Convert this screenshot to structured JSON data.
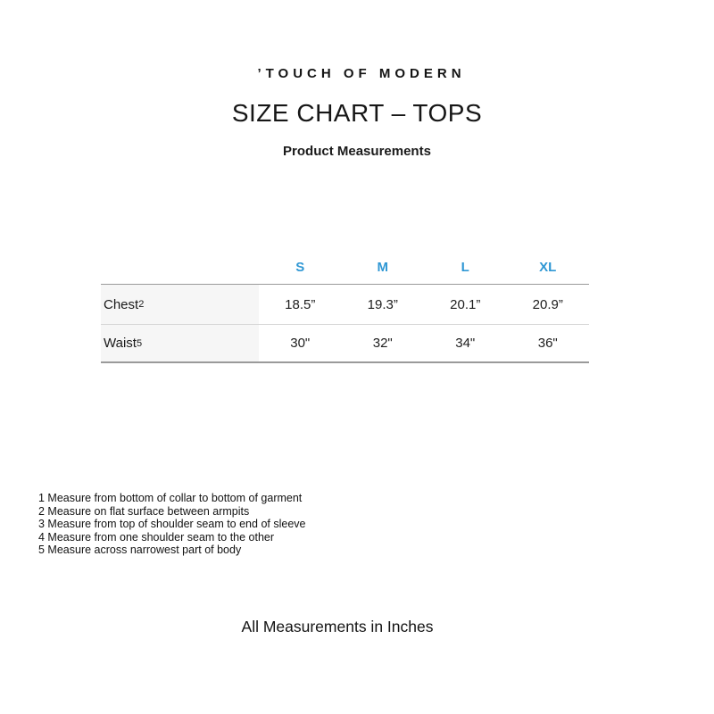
{
  "header": {
    "logo": "’TOUCH OF MODERN",
    "title": "SIZE CHART – TOPS",
    "subtitle": "Product Measurements"
  },
  "table": {
    "columns": [
      "S",
      "M",
      "L",
      "XL"
    ],
    "rows": [
      {
        "label": "Chest",
        "sup": "2",
        "values": [
          "18.5”",
          "19.3”",
          "20.1”",
          "20.9”"
        ]
      },
      {
        "label": "Waist",
        "sup": "5",
        "values": [
          "30\"",
          "32\"",
          "34\"",
          "36\""
        ]
      }
    ]
  },
  "footnotes": [
    "1 Measure from bottom of collar to bottom of garment",
    "2 Measure on flat surface between armpits",
    "3 Measure from top of shoulder seam to end of sleeve",
    "4 Measure from one shoulder seam to the other",
    "5 Measure across narrowest part of body"
  ],
  "footer": "All Measurements in Inches",
  "colors": {
    "accent_blue": "#2f97d4",
    "row_label_bg": "#f6f6f6",
    "border_light": "#d6d6d6",
    "border_dark": "#9a9a9a",
    "text": "#1a1a1a"
  }
}
